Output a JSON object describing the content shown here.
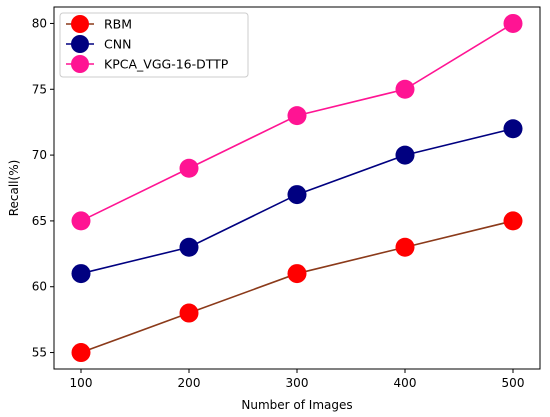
{
  "chart_data": {
    "type": "line",
    "title": "",
    "xlabel": "Number of Images",
    "ylabel": "Recall(%)",
    "x": [
      100,
      200,
      300,
      400,
      500
    ],
    "x_ticks": [
      "100",
      "200",
      "300",
      "400",
      "500"
    ],
    "y_ticks": [
      "55",
      "60",
      "65",
      "70",
      "75",
      "80"
    ],
    "xlim": [
      75,
      525
    ],
    "ylim": [
      53.75,
      81.25
    ],
    "grid": false,
    "legend_position": "top-left",
    "series": [
      {
        "name": "RBM",
        "values": [
          55,
          58,
          61,
          63,
          65
        ],
        "marker_color": "#ff0000",
        "line_color": "#8b3a1a"
      },
      {
        "name": "CNN",
        "values": [
          61,
          63,
          67,
          70,
          72
        ],
        "marker_color": "#000080",
        "line_color": "#000080"
      },
      {
        "name": "KPCA_VGG-16-DTTP",
        "values": [
          65,
          69,
          73,
          75,
          80
        ],
        "marker_color": "#ff1493",
        "line_color": "#ff1493"
      }
    ]
  }
}
